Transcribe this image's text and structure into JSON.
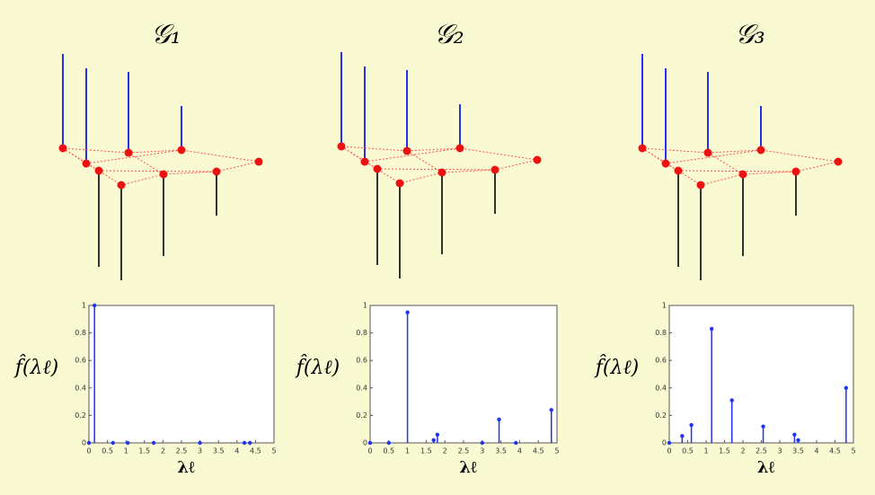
{
  "chart_data": [
    {
      "type": "stem",
      "title": "𝒢₁",
      "ylabel": "f̂(λℓ)",
      "xlabel": "λℓ",
      "x": [
        0,
        0.15,
        0.65,
        1.05,
        1.75,
        3.0,
        4.2,
        4.35
      ],
      "values": [
        0,
        1,
        0,
        0,
        0,
        0,
        0,
        0
      ],
      "color": "#2233ee",
      "xlim": [
        0,
        5
      ],
      "xticks": [
        0,
        0.5,
        1,
        1.5,
        2,
        2.5,
        3,
        3.5,
        4,
        4.5,
        5
      ],
      "ylim": [
        0,
        1
      ],
      "yticks": [
        0,
        0.2,
        0.4,
        0.6,
        0.8,
        1
      ]
    },
    {
      "type": "stem",
      "title": "𝒢₂",
      "ylabel": "f̂(λℓ)",
      "xlabel": "λℓ",
      "x": [
        0,
        0.5,
        1.0,
        1.7,
        1.8,
        3.0,
        3.45,
        3.9,
        4.85
      ],
      "values": [
        0,
        0,
        0.95,
        0.02,
        0.06,
        0,
        0.17,
        0,
        0.24
      ],
      "color": "#2233ee",
      "xlim": [
        0,
        5
      ],
      "xticks": [
        0,
        0.5,
        1,
        1.5,
        2,
        2.5,
        3,
        3.5,
        4,
        4.5,
        5
      ],
      "ylim": [
        0,
        1
      ],
      "yticks": [
        0,
        0.2,
        0.4,
        0.6,
        0.8,
        1
      ]
    },
    {
      "type": "stem",
      "title": "𝒢₃",
      "ylabel": "f̂(λℓ)",
      "xlabel": "λℓ",
      "x": [
        0,
        0.35,
        0.6,
        1.15,
        1.7,
        2.55,
        3.4,
        3.5,
        4.8
      ],
      "values": [
        0,
        0.05,
        0.13,
        0.83,
        0.31,
        0.12,
        0.06,
        0.02,
        0.4
      ],
      "color": "#2233ee",
      "xlim": [
        0,
        5
      ],
      "xticks": [
        0,
        0.5,
        1,
        1.5,
        2,
        2.5,
        3,
        3.5,
        4,
        4.5,
        5
      ],
      "ylim": [
        0,
        1
      ],
      "yticks": [
        0,
        0.2,
        0.4,
        0.6,
        0.8,
        1
      ]
    }
  ]
}
